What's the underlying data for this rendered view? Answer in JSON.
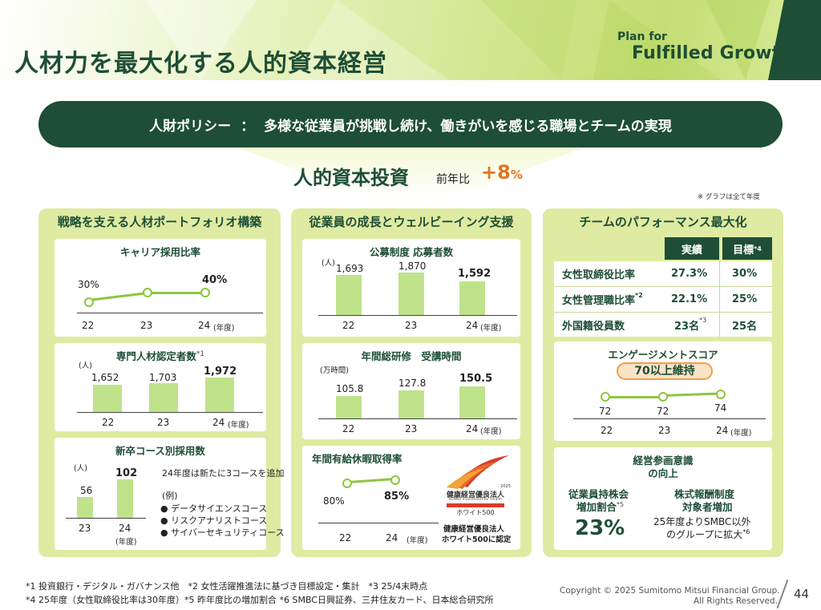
{
  "header": {
    "title": "人材力を最大化する人的資本経営",
    "brand_small": "Plan for",
    "brand_large": "Fulfilled Growth"
  },
  "policy": {
    "label": "人財ポリシー",
    "separator": "：",
    "text": "多様な従業員が挑戦し続け、働きがいを感じる職場とチームの実現"
  },
  "investment": {
    "title": "人的資本投資",
    "sub": "前年比",
    "value": "+8",
    "unit": "%",
    "note": "※ グラフは全て年度"
  },
  "col1": {
    "title": "戦略を支える人材ポートフォリオ構築",
    "career": {
      "title": "キャリア採用比率",
      "points": [
        {
          "x": "22",
          "label": "30%"
        },
        {
          "x": "23",
          "label": ""
        },
        {
          "x": "24",
          "label": "40%"
        }
      ],
      "unit": "(年度)"
    },
    "specialist": {
      "title": "専門人材認定者数",
      "title_sup": "*1",
      "unit_y": "(人)",
      "bars": [
        {
          "x": "22",
          "label": "1,652",
          "value": 1652
        },
        {
          "x": "23",
          "label": "1,703",
          "value": 1703
        },
        {
          "x": "24",
          "label": "1,972",
          "value": 1972
        }
      ],
      "unit": "(年度)"
    },
    "graduates": {
      "title": "新卒コース別採用数",
      "unit_y": "(人)",
      "bars": [
        {
          "x": "23",
          "label": "56",
          "value": 56
        },
        {
          "x": "24",
          "label": "102",
          "value": 102
        }
      ],
      "unit": "(年度)",
      "note": "24年度は新たに3コースを追加",
      "example_label": "(例)",
      "examples": [
        "データサイエンスコース",
        "リスクアナリストコース",
        "サイバーセキュリティコース"
      ]
    }
  },
  "col2": {
    "title": "従業員の成長とウェルビーイング支援",
    "applicants": {
      "title": "公募制度 応募者数",
      "unit_y": "(人)",
      "bars": [
        {
          "x": "22",
          "label": "1,693",
          "value": 1693
        },
        {
          "x": "23",
          "label": "1,870",
          "value": 1870
        },
        {
          "x": "24",
          "label": "1,592",
          "value": 1592
        }
      ],
      "unit": "(年度)"
    },
    "training": {
      "title": "年間総研修　受講時間",
      "unit_y": "(万時間)",
      "bars": [
        {
          "x": "22",
          "label": "105.8",
          "value": 105.8
        },
        {
          "x": "23",
          "label": "127.8",
          "value": 127.8
        },
        {
          "x": "24",
          "label": "150.5",
          "value": 150.5
        }
      ],
      "unit": "(年度)"
    },
    "leave": {
      "title": "年間有給休暇取得率",
      "points": [
        {
          "x": "22",
          "label": "80%"
        },
        {
          "x": "24",
          "label": "85%"
        }
      ],
      "unit": "(年度)",
      "cert_line1": "健康経営優良法人",
      "cert_line2": "ホワイト500に認定",
      "logo_year": "2025",
      "logo_title": "健康経営優良法人",
      "logo_en": "KENKO Investment for Health",
      "logo_sub": "ホワイト500"
    }
  },
  "col3": {
    "title": "チームのパフォーマンス最大化",
    "table": {
      "head_actual": "実績",
      "head_target": "目標",
      "head_target_sup": "*4",
      "rows": [
        {
          "label": "女性取締役比率",
          "label_sup": "",
          "actual": "27.3%",
          "actual_sup": "",
          "target": "30%"
        },
        {
          "label": "女性管理職比率",
          "label_sup": "*2",
          "actual": "22.1%",
          "actual_sup": "",
          "target": "25%"
        },
        {
          "label": "外国籍役員数",
          "label_sup": "",
          "actual": "23名",
          "actual_sup": "*3",
          "target": "25名"
        }
      ]
    },
    "engagement": {
      "title": "エンゲージメントスコア",
      "badge": "70以上維持",
      "points": [
        {
          "x": "22",
          "label": "72"
        },
        {
          "x": "23",
          "label": "72"
        },
        {
          "x": "24",
          "label": "74"
        }
      ],
      "unit": "(年度)"
    },
    "participation": {
      "title1": "経営参画意識",
      "title2": "の向上",
      "left_title1": "従業員持株会",
      "left_title2": "増加割合",
      "left_sup": "*5",
      "left_value": "23%",
      "right_title1": "株式報酬制度",
      "right_title2": "対象者増加",
      "right_text1": "25年度よりSMBC以外",
      "right_text2": "のグループに拡大",
      "right_sup": "*6"
    }
  },
  "footnotes": {
    "line1": "*1 投資銀行・デジタル・ガバナンス他　*2 女性活躍推進法に基づき目標設定・集計　*3 25/4末時点",
    "line2": "*4 25年度（女性取締役比率は30年度）*5 昨年度比の増加割合 *6 SMBC日興証券、三井住友カード、日本総合研究所"
  },
  "copyright": {
    "line1": "Copyright © 2025 Sumitomo Mitsui Financial Group.",
    "line2": "All Rights Reserved."
  },
  "page_number": "44",
  "colors": {
    "dark_green": "#1e4e36",
    "light_green": "#dfeba2",
    "bar_green": "#bfe38b",
    "line_green": "#8dc63f",
    "accent_orange": "#e0761e"
  }
}
